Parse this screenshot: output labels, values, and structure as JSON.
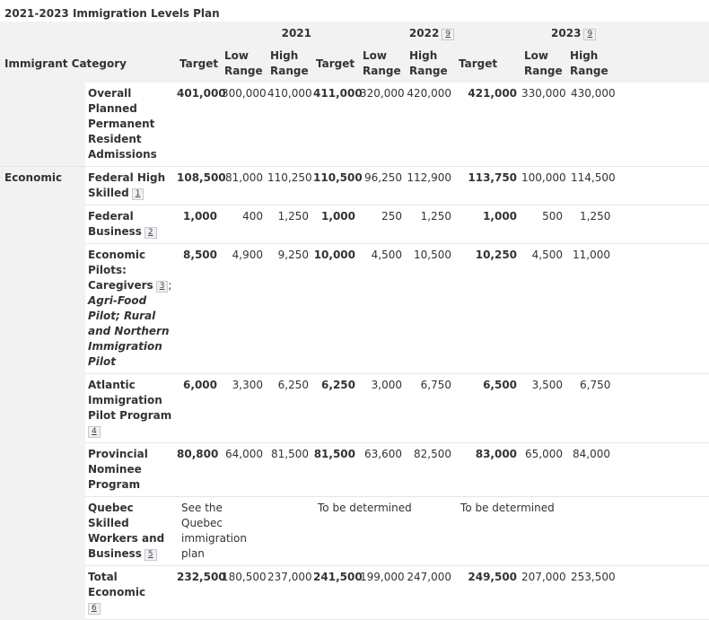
{
  "caption": "2021-2023 Immigration Levels Plan",
  "header": {
    "category_label": "Immigrant Category",
    "years": [
      {
        "label": "2021",
        "note": ""
      },
      {
        "label": "2022",
        "note": "9"
      },
      {
        "label": "2023",
        "note": "9"
      }
    ],
    "sub": {
      "target": "Target",
      "low_1": "Low",
      "low_2": "Range",
      "high_1": "High",
      "high_2": "Range"
    }
  },
  "groups": {
    "economic": "Economic"
  },
  "rows": [
    {
      "category": "Overall Planned Permanent Resident Admissions",
      "values": [
        "401,000",
        "300,000",
        "410,000",
        "411,000",
        "320,000",
        "420,000",
        "421,000",
        "330,000",
        "430,000"
      ]
    },
    {
      "category": "Federal High Skilled",
      "note": "1",
      "values": [
        "108,500",
        "81,000",
        "110,250",
        "110,500",
        "96,250",
        "112,900",
        "113,750",
        "100,000",
        "114,500"
      ]
    },
    {
      "category": "Federal Business",
      "note": "2",
      "values": [
        "1,000",
        "400",
        "1,250",
        "1,000",
        "250",
        "1,250",
        "1,000",
        "500",
        "1,250"
      ]
    },
    {
      "category_a": "Economic Pilots: Caregivers",
      "note": "3",
      "category_b": ";",
      "category_italic": "Agri-Food Pilot; Rural and Northern Immigration Pilot",
      "values": [
        "8,500",
        "4,900",
        "9,250",
        "10,000",
        "4,500",
        "10,500",
        "10,250",
        "4,500",
        "11,000"
      ]
    },
    {
      "category": "Atlantic Immigration Pilot Program",
      "note": "4",
      "values": [
        "6,000",
        "3,300",
        "6,250",
        "6,250",
        "3,000",
        "6,750",
        "6,500",
        "3,500",
        "6,750"
      ]
    },
    {
      "category": "Provincial Nominee Program",
      "values": [
        "80,800",
        "64,000",
        "81,500",
        "81,500",
        "63,600",
        "82,500",
        "83,000",
        "65,000",
        "84,000"
      ]
    },
    {
      "category": "Quebec Skilled Workers and Business",
      "note": "5",
      "notes": [
        "See the Quebec immigration plan",
        "To be determined",
        "To be determined"
      ]
    },
    {
      "category": "Total Economic",
      "note": "6",
      "values": [
        "232,500",
        "180,500",
        "237,000",
        "241,500",
        "199,000",
        "247,000",
        "249,500",
        "207,000",
        "253,500"
      ]
    }
  ]
}
